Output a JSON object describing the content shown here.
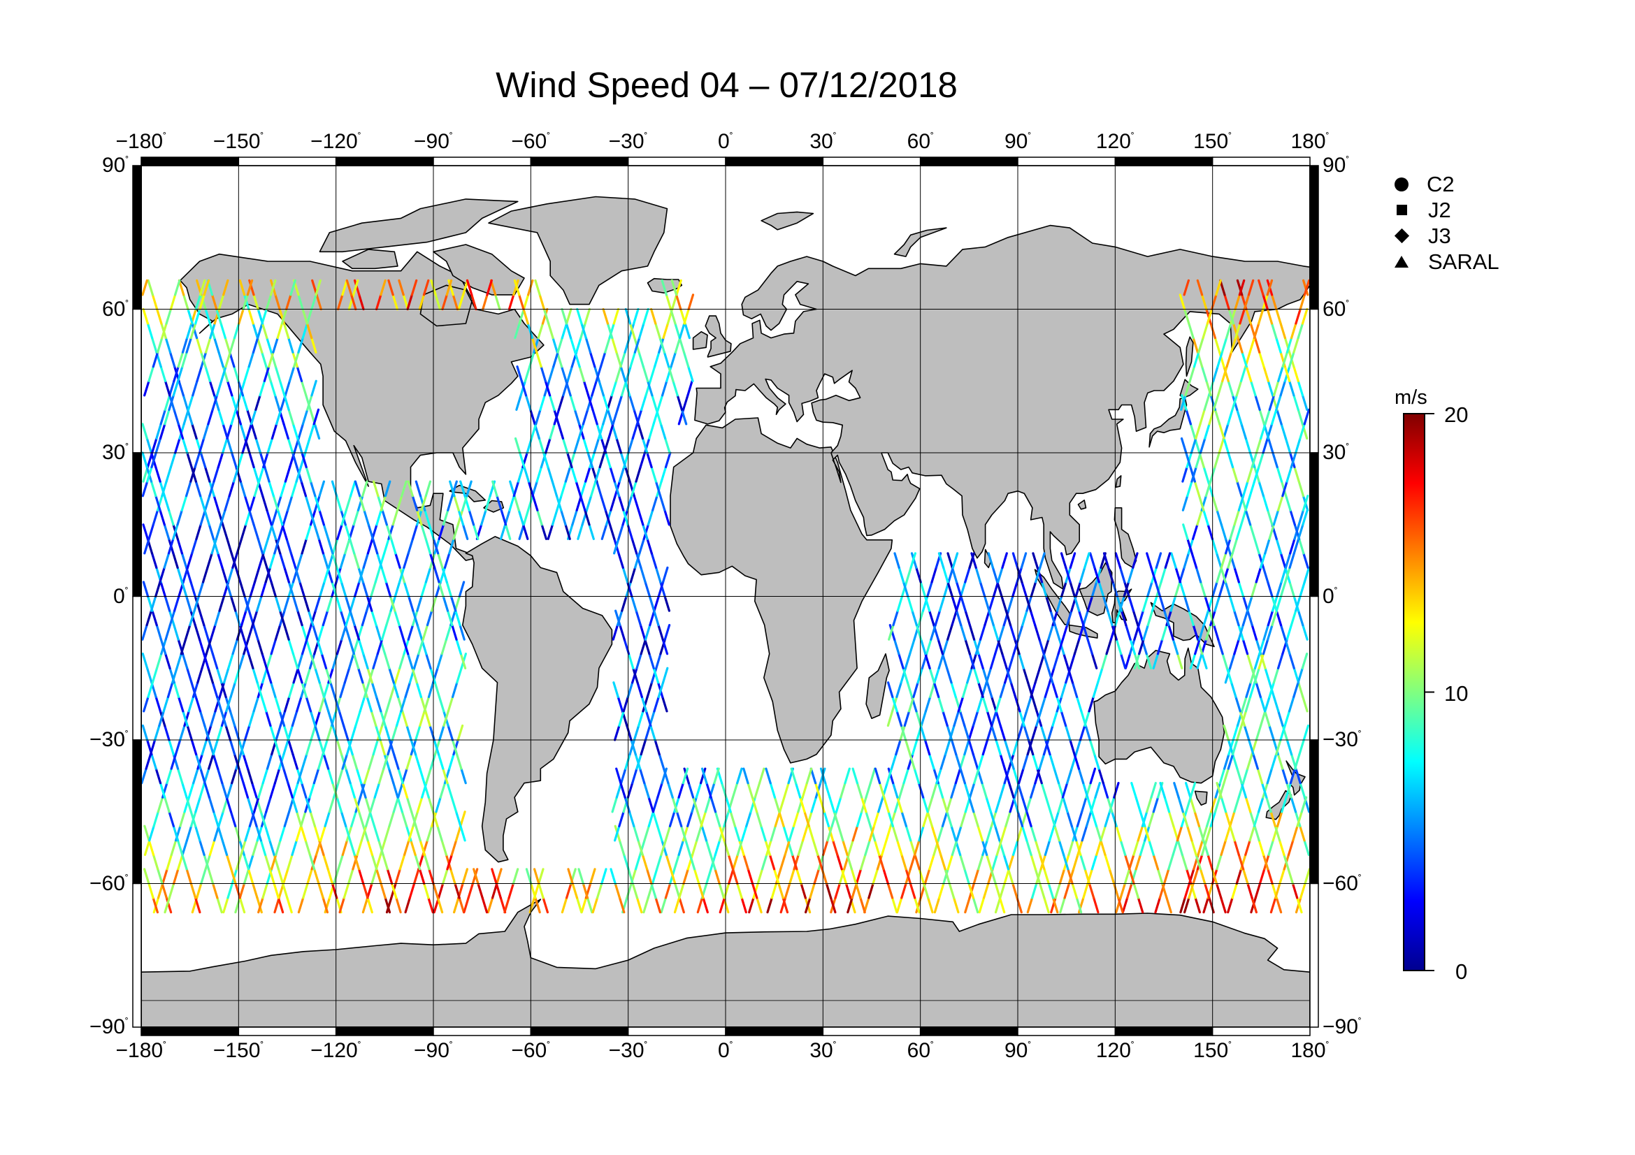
{
  "title": "Wind Speed 04 – 07/12/2018",
  "map": {
    "lon_range": [
      -180,
      180
    ],
    "lat_range": [
      -90,
      90
    ],
    "lon_ticks": [
      "−180",
      "−150",
      "−120",
      "−90",
      "−60",
      "−30",
      "0",
      "30",
      "60",
      "90",
      "120",
      "150",
      "180"
    ],
    "lat_ticks": [
      "90",
      "60",
      "30",
      "0",
      "−30",
      "−60",
      "−90"
    ],
    "degree_symbol": "˚",
    "land_color": "#bebebe",
    "ocean_color": "#ffffff",
    "grid": true,
    "track_coverage_lat": [
      -66,
      66
    ]
  },
  "legend": {
    "items": [
      {
        "label": "C2",
        "symbol": "circle-icon"
      },
      {
        "label": "J2",
        "symbol": "square-icon"
      },
      {
        "label": "J3",
        "symbol": "diamond-icon"
      },
      {
        "label": "SARAL",
        "symbol": "triangle-icon"
      }
    ]
  },
  "colorbar": {
    "unit": "m/s",
    "min": 0,
    "max": 20,
    "tick_labels": [
      "20",
      "10",
      "0"
    ],
    "colors": [
      "#00008f",
      "#0000ff",
      "#0080ff",
      "#00ffff",
      "#80ff80",
      "#ffff00",
      "#ff8000",
      "#ff0000",
      "#800000"
    ]
  }
}
